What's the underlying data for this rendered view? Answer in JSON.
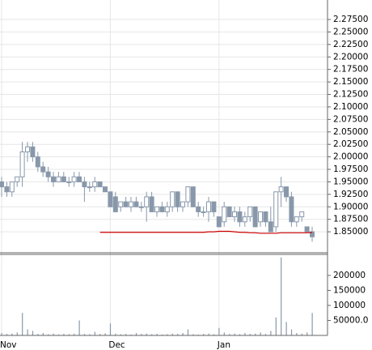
{
  "chart_data": [
    {
      "type": "candlestick",
      "categories": [
        "Nov",
        null,
        null,
        null,
        null,
        null,
        null,
        null,
        null,
        null,
        null,
        null,
        null,
        null,
        null,
        null,
        null,
        null,
        null,
        null,
        null,
        "Dec",
        null,
        null,
        null,
        null,
        null,
        null,
        null,
        null,
        null,
        null,
        null,
        null,
        null,
        null,
        null,
        null,
        null,
        null,
        null,
        null,
        "Jan",
        null,
        null,
        null,
        null,
        null,
        null,
        null,
        null,
        null,
        null,
        null,
        null,
        null,
        null,
        null,
        null,
        null,
        null
      ],
      "open": [
        1.95,
        1.94,
        1.93,
        1.95,
        1.96,
        2.01,
        2.02,
        2.0,
        1.98,
        1.97,
        1.96,
        1.95,
        1.96,
        1.95,
        1.95,
        1.96,
        1.95,
        1.94,
        1.94,
        1.95,
        1.94,
        1.93,
        1.92,
        1.9,
        1.91,
        1.9,
        1.91,
        1.9,
        1.9,
        1.92,
        1.89,
        1.9,
        1.89,
        1.9,
        1.93,
        1.9,
        1.91,
        1.94,
        1.9,
        1.89,
        1.89,
        1.91,
        1.88,
        1.87,
        1.9,
        1.88,
        1.89,
        1.87,
        1.88,
        1.9,
        1.87,
        1.89,
        1.87,
        1.86,
        1.93,
        1.94,
        1.92,
        1.87,
        1.88,
        1.86,
        1.85
      ],
      "high": [
        1.96,
        1.95,
        1.95,
        1.96,
        2.03,
        2.03,
        2.03,
        2.01,
        1.99,
        1.98,
        1.97,
        1.97,
        1.97,
        1.96,
        1.97,
        1.97,
        1.96,
        1.95,
        1.96,
        1.95,
        1.94,
        1.93,
        1.93,
        1.91,
        1.92,
        1.92,
        1.92,
        1.91,
        1.93,
        1.93,
        1.9,
        1.91,
        1.91,
        1.93,
        1.93,
        1.91,
        1.94,
        1.94,
        1.91,
        1.9,
        1.92,
        1.91,
        1.88,
        1.91,
        1.9,
        1.9,
        1.9,
        1.89,
        1.9,
        1.9,
        1.89,
        1.89,
        1.9,
        1.93,
        1.96,
        1.94,
        1.93,
        1.88,
        1.89,
        1.86,
        1.86
      ],
      "low": [
        1.92,
        1.92,
        1.92,
        1.94,
        1.94,
        1.99,
        1.99,
        1.97,
        1.96,
        1.95,
        1.94,
        1.95,
        1.95,
        1.94,
        1.94,
        1.95,
        1.91,
        1.93,
        1.93,
        1.94,
        1.93,
        1.9,
        1.89,
        1.89,
        1.9,
        1.89,
        1.9,
        1.89,
        1.87,
        1.89,
        1.88,
        1.89,
        1.88,
        1.89,
        1.89,
        1.89,
        1.9,
        1.9,
        1.88,
        1.88,
        1.87,
        1.88,
        1.86,
        1.86,
        1.88,
        1.87,
        1.86,
        1.86,
        1.87,
        1.86,
        1.86,
        1.86,
        1.85,
        1.85,
        1.9,
        1.91,
        1.86,
        1.86,
        1.87,
        1.85,
        1.83
      ],
      "close": [
        1.94,
        1.93,
        1.95,
        1.96,
        2.01,
        2.02,
        2.0,
        1.98,
        1.97,
        1.96,
        1.95,
        1.96,
        1.95,
        1.95,
        1.96,
        1.95,
        1.94,
        1.94,
        1.95,
        1.94,
        1.93,
        1.9,
        1.89,
        1.91,
        1.9,
        1.91,
        1.9,
        1.9,
        1.92,
        1.89,
        1.9,
        1.89,
        1.9,
        1.93,
        1.9,
        1.91,
        1.94,
        1.9,
        1.89,
        1.89,
        1.91,
        1.89,
        1.86,
        1.9,
        1.88,
        1.89,
        1.87,
        1.88,
        1.9,
        1.86,
        1.89,
        1.87,
        1.85,
        1.93,
        1.94,
        1.92,
        1.87,
        1.88,
        1.89,
        1.85,
        1.84
      ],
      "up_color": "#ffffff",
      "down_color": "#8898aa",
      "edge_color": "#8898aa",
      "ma": {
        "color": "#cc0000",
        "values": [
          null,
          null,
          null,
          null,
          null,
          null,
          null,
          null,
          null,
          null,
          null,
          null,
          null,
          null,
          null,
          null,
          null,
          null,
          null,
          1.849,
          1.849,
          1.849,
          1.849,
          1.849,
          1.849,
          1.849,
          1.849,
          1.849,
          1.849,
          1.849,
          1.849,
          1.849,
          1.849,
          1.849,
          1.849,
          1.849,
          1.849,
          1.849,
          1.849,
          1.849,
          1.85,
          1.85,
          1.851,
          1.851,
          1.851,
          1.85,
          1.849,
          1.849,
          1.848,
          1.848,
          1.847,
          1.847,
          1.847,
          1.847,
          1.848,
          1.848,
          1.848,
          1.848,
          1.848,
          1.848,
          1.849
        ]
      },
      "ylim": [
        1.808,
        2.314
      ],
      "yticks": [
        {
          "value": 1.85,
          "label": "1.85000"
        },
        {
          "value": 1.875,
          "label": "1.87500"
        },
        {
          "value": 1.9,
          "label": "1.90000"
        },
        {
          "value": 1.925,
          "label": "1.92500"
        },
        {
          "value": 1.95,
          "label": "1.95000"
        },
        {
          "value": 1.975,
          "label": "1.97500"
        },
        {
          "value": 2.0,
          "label": "2.00000"
        },
        {
          "value": 2.025,
          "label": "2.02500"
        },
        {
          "value": 2.05,
          "label": "2.05000"
        },
        {
          "value": 2.075,
          "label": "2.07500"
        },
        {
          "value": 2.1,
          "label": "2.10000"
        },
        {
          "value": 2.125,
          "label": "2.12500"
        },
        {
          "value": 2.15,
          "label": "2.15000"
        },
        {
          "value": 2.175,
          "label": "2.17500"
        },
        {
          "value": 2.2,
          "label": "2.20000"
        },
        {
          "value": 2.225,
          "label": "2.22500"
        },
        {
          "value": 2.25,
          "label": "2.25000"
        },
        {
          "value": 2.275,
          "label": "2.27500"
        }
      ],
      "grid": true
    },
    {
      "type": "bar",
      "values": [
        8000,
        5000,
        6000,
        10000,
        75000,
        20000,
        15000,
        5000,
        8000,
        4000,
        6000,
        3000,
        5000,
        4000,
        6000,
        50000,
        5000,
        4000,
        12000,
        5000,
        7000,
        40000,
        6000,
        4000,
        5000,
        3000,
        8000,
        5000,
        6000,
        4000,
        5000,
        3000,
        4000,
        6000,
        5000,
        8000,
        20000,
        4000,
        3000,
        5000,
        6000,
        4000,
        25000,
        10000,
        5000,
        6000,
        4000,
        8000,
        5000,
        6000,
        10000,
        5000,
        15000,
        60000,
        260000,
        45000,
        20000,
        8000,
        6000,
        10000,
        75000
      ],
      "color": "#8898aa",
      "ylim": [
        0,
        270000
      ],
      "yticks": [
        {
          "value": 50000,
          "label": "50000.0"
        },
        100000,
        150000,
        200000
      ]
    }
  ]
}
